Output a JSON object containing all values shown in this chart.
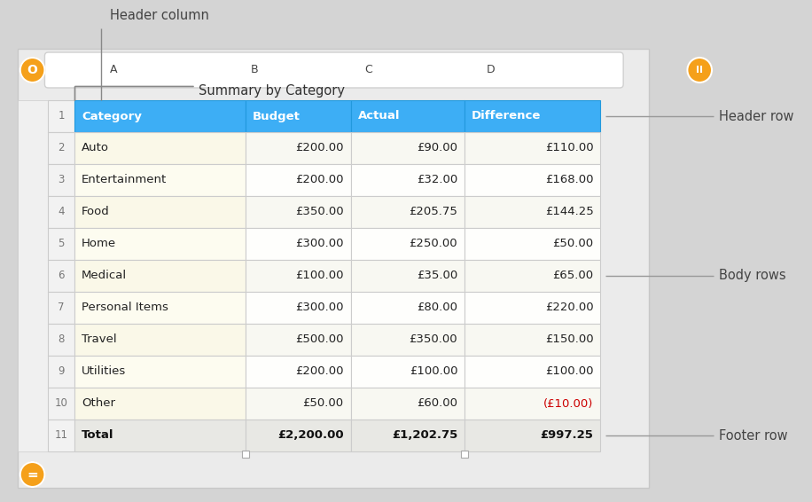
{
  "title": "Summary by Category",
  "header_row": [
    "Category",
    "Budget",
    "Actual",
    "Difference"
  ],
  "body_rows": [
    [
      "Auto",
      "£200.00",
      "£90.00",
      "£110.00",
      false
    ],
    [
      "Entertainment",
      "£200.00",
      "£32.00",
      "£168.00",
      false
    ],
    [
      "Food",
      "£350.00",
      "£205.75",
      "£144.25",
      false
    ],
    [
      "Home",
      "£300.00",
      "£250.00",
      "£50.00",
      false
    ],
    [
      "Medical",
      "£100.00",
      "£35.00",
      "£65.00",
      false
    ],
    [
      "Personal Items",
      "£300.00",
      "£80.00",
      "£220.00",
      false
    ],
    [
      "Travel",
      "£500.00",
      "£350.00",
      "£150.00",
      false
    ],
    [
      "Utilities",
      "£200.00",
      "£100.00",
      "£100.00",
      false
    ],
    [
      "Other",
      "£50.00",
      "£60.00",
      "(£10.00)",
      true
    ]
  ],
  "footer_row": [
    "Total",
    "£2,200.00",
    "£1,202.75",
    "£997.25"
  ],
  "col_letters": [
    "A",
    "B",
    "C",
    "D"
  ],
  "header_bg": "#3daef5",
  "header_fg": "#ffffff",
  "body_odd_bg": "#f8f8f2",
  "body_even_bg": "#fefefc",
  "body_cat_odd_bg": "#faf8e8",
  "body_cat_even_bg": "#fdfcf0",
  "footer_bg": "#e8e8e4",
  "border_color": "#cccccc",
  "header_border_color": "#2299dd",
  "row_num_bg": "#f2f2f2",
  "row_num_fg": "#777777",
  "negative_color": "#cc0000",
  "col_header_bg": "#ffffff",
  "col_header_fg": "#444444",
  "title_fg": "#333333",
  "annotation_fg": "#444444",
  "fig_bg": "#d4d4d4",
  "sheet_bg": "#ebebeb",
  "orange_btn": "#f5a01a"
}
